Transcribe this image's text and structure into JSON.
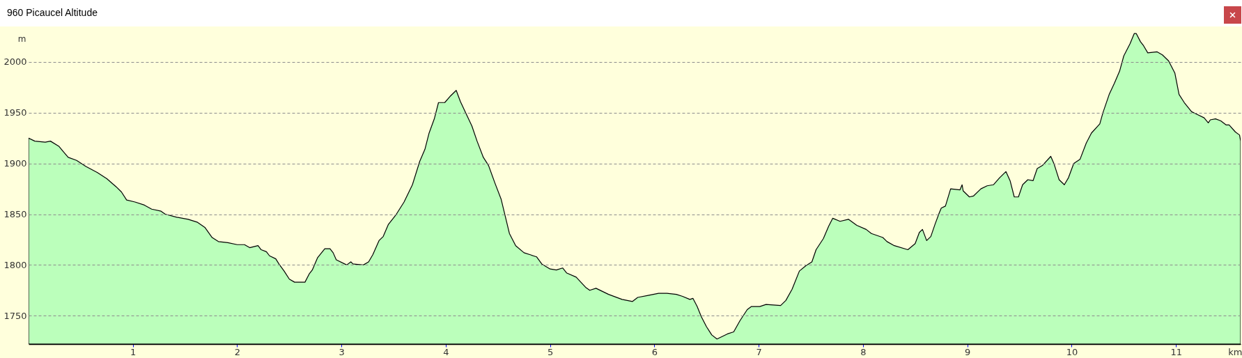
{
  "chart_data": {
    "type": "area",
    "title": "960 Picaucel Altitude",
    "xlabel": "km",
    "ylabel": "m",
    "x": [
      0,
      0.06,
      0.16,
      0.21,
      0.29,
      0.33,
      0.38,
      0.46,
      0.55,
      0.66,
      0.75,
      0.84,
      0.89,
      0.94,
      1.02,
      1.11,
      1.18,
      1.27,
      1.31,
      1.42,
      1.53,
      1.62,
      1.69,
      1.76,
      1.82,
      1.91,
      2.0,
      2.07,
      2.12,
      2.2,
      2.23,
      2.28,
      2.31,
      2.37,
      2.4,
      2.45,
      2.5,
      2.55,
      2.65,
      2.69,
      2.72,
      2.77,
      2.84,
      2.89,
      2.92,
      2.95,
      3.05,
      3.09,
      3.11,
      3.21,
      3.26,
      3.3,
      3.36,
      3.4,
      3.45,
      3.52,
      3.6,
      3.68,
      3.75,
      3.8,
      3.84,
      3.89,
      3.93,
      3.99,
      4.04,
      4.1,
      4.14,
      4.19,
      4.25,
      4.3,
      4.36,
      4.41,
      4.47,
      4.53,
      4.57,
      4.61,
      4.67,
      4.75,
      4.81,
      4.87,
      4.92,
      5.0,
      5.06,
      5.12,
      5.16,
      5.25,
      5.34,
      5.38,
      5.44,
      5.56,
      5.69,
      5.79,
      5.84,
      5.94,
      6.04,
      6.12,
      6.21,
      6.27,
      6.34,
      6.37,
      6.41,
      6.45,
      6.5,
      6.55,
      6.6,
      6.7,
      6.76,
      6.82,
      6.89,
      6.93,
      7.01,
      7.07,
      7.21,
      7.26,
      7.32,
      7.39,
      7.45,
      7.51,
      7.55,
      7.62,
      7.67,
      7.71,
      7.78,
      7.86,
      7.94,
      8.03,
      8.08,
      8.19,
      8.23,
      8.3,
      8.43,
      8.5,
      8.54,
      8.57,
      8.61,
      8.65,
      8.69,
      8.73,
      8.75,
      8.79,
      8.84,
      8.93,
      8.95,
      8.96,
      9.02,
      9.06,
      9.13,
      9.19,
      9.25,
      9.31,
      9.37,
      9.41,
      9.45,
      9.49,
      9.53,
      9.58,
      9.63,
      9.67,
      9.72,
      9.8,
      9.83,
      9.88,
      9.93,
      9.97,
      10.02,
      10.08,
      10.14,
      10.19,
      10.27,
      10.3,
      10.36,
      10.41,
      10.46,
      10.5,
      10.56,
      10.6,
      10.62,
      10.66,
      10.69,
      10.73,
      10.82,
      10.87,
      10.93,
      10.99,
      11.03,
      11.08,
      11.15,
      11.21,
      11.27,
      11.31,
      11.33,
      11.38,
      11.43,
      11.48,
      11.51,
      11.57,
      11.61,
      11.62
    ],
    "values": [
      1925,
      1922,
      1921,
      1922,
      1917,
      1912,
      1906,
      1903,
      1897,
      1891,
      1885,
      1877,
      1872,
      1864,
      1862,
      1859,
      1855,
      1853,
      1850,
      1847,
      1845,
      1842,
      1837,
      1827,
      1823,
      1822,
      1820,
      1820,
      1817,
      1819,
      1815,
      1813,
      1809,
      1806,
      1801,
      1794,
      1786,
      1783,
      1783,
      1791,
      1795,
      1807,
      1816,
      1816,
      1812,
      1805,
      1800,
      1803,
      1801,
      1800,
      1803,
      1810,
      1824,
      1828,
      1840,
      1849,
      1862,
      1879,
      1902,
      1914,
      1930,
      1944,
      1960,
      1960,
      1966,
      1972,
      1961,
      1950,
      1937,
      1922,
      1906,
      1898,
      1881,
      1865,
      1848,
      1831,
      1819,
      1812,
      1810,
      1808,
      1801,
      1796,
      1795,
      1797,
      1792,
      1788,
      1778,
      1775,
      1777,
      1771,
      1766,
      1764,
      1768,
      1770,
      1772,
      1772,
      1771,
      1769,
      1766,
      1767,
      1759,
      1749,
      1739,
      1731,
      1727,
      1732,
      1734,
      1745,
      1756,
      1759,
      1759,
      1761,
      1760,
      1765,
      1776,
      1794,
      1799,
      1803,
      1815,
      1826,
      1838,
      1846,
      1843,
      1845,
      1839,
      1835,
      1831,
      1827,
      1823,
      1819,
      1815,
      1821,
      1832,
      1835,
      1824,
      1828,
      1840,
      1851,
      1856,
      1858,
      1875,
      1874,
      1879,
      1873,
      1867,
      1868,
      1875,
      1878,
      1879,
      1886,
      1892,
      1883,
      1867,
      1867,
      1879,
      1884,
      1883,
      1895,
      1898,
      1907,
      1900,
      1884,
      1879,
      1886,
      1900,
      1904,
      1920,
      1930,
      1939,
      1950,
      1968,
      1979,
      1991,
      2006,
      2018,
      2028,
      2028,
      2020,
      2016,
      2009,
      2010,
      2007,
      2001,
      1989,
      1968,
      1960,
      1951,
      1948,
      1945,
      1940,
      1943,
      1944,
      1942,
      1938,
      1938,
      1931,
      1928,
      1922
    ],
    "color": "#bbffbb",
    "xlim": [
      0,
      11.62
    ],
    "ylim": [
      1722,
      2035
    ],
    "xticks": [
      1,
      2,
      3,
      4,
      5,
      6,
      7,
      8,
      9,
      10,
      11
    ],
    "yticks": [
      1750,
      1800,
      1850,
      1900,
      1950,
      2000
    ],
    "grid": "y"
  }
}
